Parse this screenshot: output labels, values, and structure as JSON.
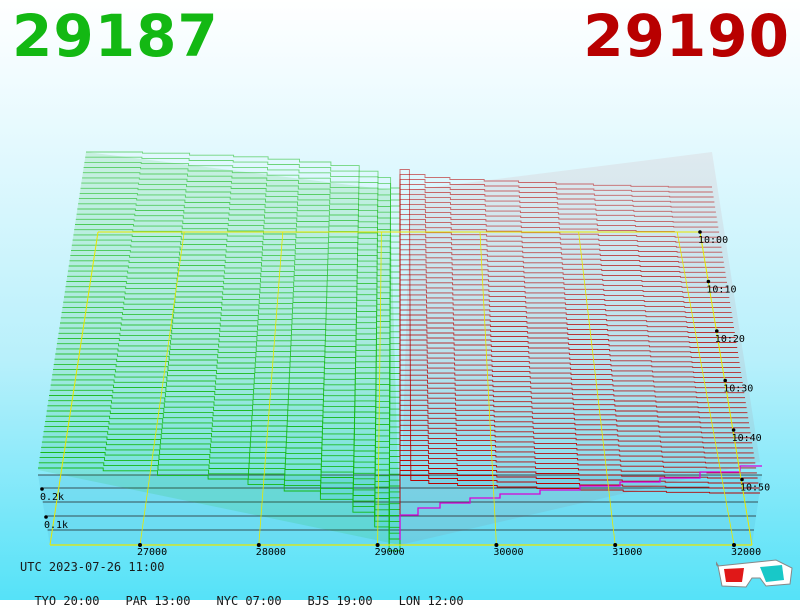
{
  "header": {
    "bid": "29187",
    "ask": "29190"
  },
  "footer": {
    "utc": "UTC 2023-07-26 11:00",
    "zones": [
      "TYO 20:00",
      "PAR 13:00",
      "NYC 07:00",
      "BJS 19:00",
      "LON 12:00"
    ]
  },
  "colors": {
    "bid": "#13b813",
    "ask": "#b80000",
    "grid": "#e8e800",
    "recent": "#d800d8"
  },
  "icons": {
    "glasses": "3d-glasses-icon"
  },
  "chart_data": {
    "type": "area",
    "x_ticks": [
      "27000",
      "28000",
      "29000",
      "30000",
      "31000",
      "32000"
    ],
    "xlim": [
      26000,
      32200
    ],
    "y_ticks": [
      "0.2k",
      "0.1k"
    ],
    "time_ticks": [
      "10:00",
      "10:10",
      "10:20",
      "10:30",
      "10:40",
      "10:50"
    ],
    "series": [
      {
        "name": "29187",
        "depth_edge": 0.33,
        "slope": "decreasing"
      },
      {
        "name": "29190",
        "depth_edge": 0.26,
        "slope": "increasing"
      }
    ]
  }
}
